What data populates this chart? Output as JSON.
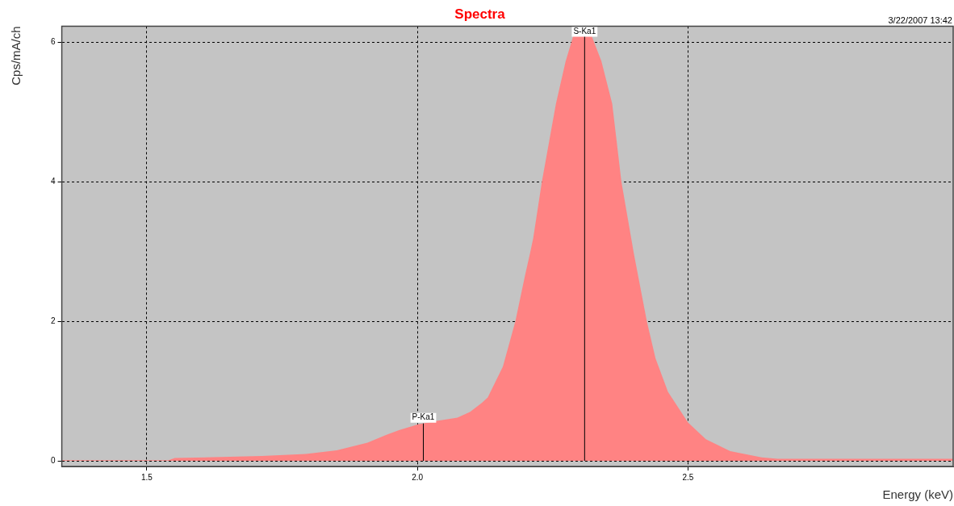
{
  "chart_data": {
    "type": "area",
    "title": "Spectra",
    "xlabel": "Energy (keV)",
    "ylabel": "Cps/mA/ch",
    "annotations": [
      "3/22/2007 13:42"
    ],
    "ref_lines": [
      {
        "axis": "x",
        "value": 2.011,
        "label": "P-Ka1",
        "color": "#000000"
      },
      {
        "axis": "x",
        "value": 2.309,
        "label": "S-Ka1",
        "color": "#000000"
      }
    ],
    "x": [
      1.343,
      1.54,
      1.552,
      1.713,
      1.794,
      1.851,
      1.908,
      1.942,
      1.966,
      2.0,
      2.034,
      2.074,
      2.097,
      2.119,
      2.13,
      2.158,
      2.181,
      2.199,
      2.208,
      2.214,
      2.23,
      2.256,
      2.274,
      2.288,
      2.305,
      2.322,
      2.34,
      2.36,
      2.377,
      2.4,
      2.424,
      2.44,
      2.463,
      2.5,
      2.533,
      2.578,
      2.636,
      2.665,
      2.8,
      2.99
    ],
    "series": [
      {
        "color": "#ff8383",
        "values": [
          0.01,
          0.01,
          0.04,
          0.07,
          0.1,
          0.15,
          0.26,
          0.37,
          0.44,
          0.52,
          0.57,
          0.62,
          0.7,
          0.83,
          0.91,
          1.35,
          2.0,
          2.66,
          2.97,
          3.19,
          4.0,
          5.12,
          5.73,
          6.09,
          6.1,
          6.09,
          5.73,
          5.12,
          4.0,
          2.97,
          2.0,
          1.47,
          0.99,
          0.55,
          0.31,
          0.14,
          0.05,
          0.03,
          0.03,
          0.03
        ]
      }
    ],
    "xlim": [
      1.343,
      2.99
    ],
    "ylim": [
      -0.08,
      6.23
    ],
    "xticks": [
      1.5,
      {
        "value": 2,
        "label": "2.0"
      },
      2.5
    ],
    "yticks": [
      0,
      2,
      4,
      6
    ],
    "grid": true,
    "line_style": "dashed"
  }
}
